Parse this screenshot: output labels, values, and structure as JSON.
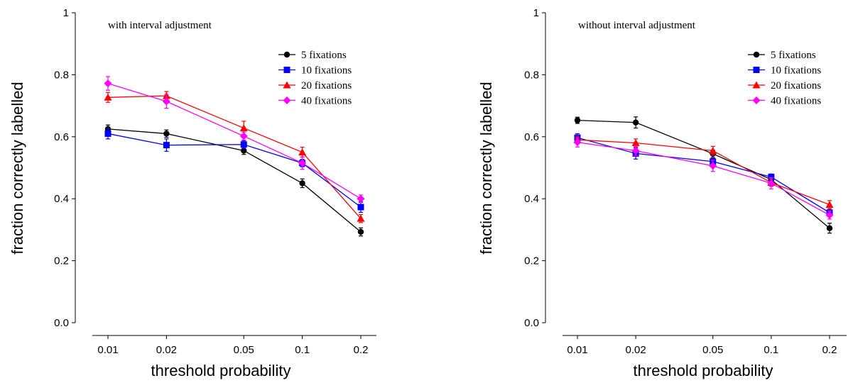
{
  "chart_data": [
    {
      "type": "line",
      "annotation": "with interval adjustment",
      "xlabel": "threshold probability",
      "ylabel": "fraction correctly labelled",
      "xscale": "log",
      "x": [
        0.01,
        0.02,
        0.05,
        0.1,
        0.2
      ],
      "x_tick_labels": [
        "0.01",
        "0.02",
        "0.05",
        "0.1",
        "0.2"
      ],
      "ylim": [
        0,
        1
      ],
      "y_ticks": [
        0,
        0.2,
        0.4,
        0.6,
        0.8,
        1
      ],
      "y_tick_labels": [
        "0.0",
        "0.2",
        "0.4",
        "0.6",
        "0.8",
        "1"
      ],
      "legend_position": "top-right",
      "grid": false,
      "series": [
        {
          "name": "5 fixations",
          "color": "#000000",
          "marker": "circle",
          "values": [
            0.625,
            0.61,
            0.555,
            0.45,
            0.293
          ],
          "errors": [
            0.013,
            0.012,
            0.012,
            0.014,
            0.013
          ]
        },
        {
          "name": "10 fixations",
          "color": "#0000ff",
          "marker": "square",
          "values": [
            0.61,
            0.573,
            0.575,
            0.515,
            0.373
          ],
          "errors": [
            0.017,
            0.02,
            0.012,
            0.012,
            0.017
          ]
        },
        {
          "name": "20 fixations",
          "color": "#ff0000",
          "marker": "triangle",
          "values": [
            0.727,
            0.732,
            0.628,
            0.55,
            0.336
          ],
          "errors": [
            0.016,
            0.014,
            0.022,
            0.016,
            0.013
          ]
        },
        {
          "name": "40 fixations",
          "color": "#ff00ff",
          "marker": "diamond",
          "values": [
            0.772,
            0.714,
            0.602,
            0.515,
            0.4
          ],
          "errors": [
            0.022,
            0.022,
            0.013,
            0.02,
            0.012
          ]
        }
      ]
    },
    {
      "type": "line",
      "annotation": "without interval adjustment",
      "xlabel": "threshold probability",
      "ylabel": "fraction correctly labelled",
      "xscale": "log",
      "x": [
        0.01,
        0.02,
        0.05,
        0.1,
        0.2
      ],
      "x_tick_labels": [
        "0.01",
        "0.02",
        "0.05",
        "0.1",
        "0.2"
      ],
      "ylim": [
        0,
        1
      ],
      "y_ticks": [
        0,
        0.2,
        0.4,
        0.6,
        0.8,
        1
      ],
      "y_tick_labels": [
        "0.0",
        "0.2",
        "0.4",
        "0.6",
        "0.8",
        "1"
      ],
      "legend_position": "top-right",
      "grid": false,
      "series": [
        {
          "name": "5 fixations",
          "color": "#000000",
          "marker": "circle",
          "values": [
            0.653,
            0.646,
            0.545,
            0.462,
            0.305
          ],
          "errors": [
            0.01,
            0.018,
            0.012,
            0.012,
            0.016
          ]
        },
        {
          "name": "10 fixations",
          "color": "#0000ff",
          "marker": "square",
          "values": [
            0.597,
            0.546,
            0.52,
            0.47,
            0.355
          ],
          "errors": [
            0.013,
            0.018,
            0.01,
            0.01,
            0.012
          ]
        },
        {
          "name": "20 fixations",
          "color": "#ff0000",
          "marker": "triangle",
          "values": [
            0.59,
            0.58,
            0.555,
            0.452,
            0.381
          ],
          "errors": [
            0.012,
            0.013,
            0.014,
            0.012,
            0.013
          ]
        },
        {
          "name": "40 fixations",
          "color": "#ff00ff",
          "marker": "diamond",
          "values": [
            0.582,
            0.555,
            0.506,
            0.45,
            0.347
          ],
          "errors": [
            0.015,
            0.015,
            0.018,
            0.018,
            0.013
          ]
        }
      ]
    }
  ]
}
